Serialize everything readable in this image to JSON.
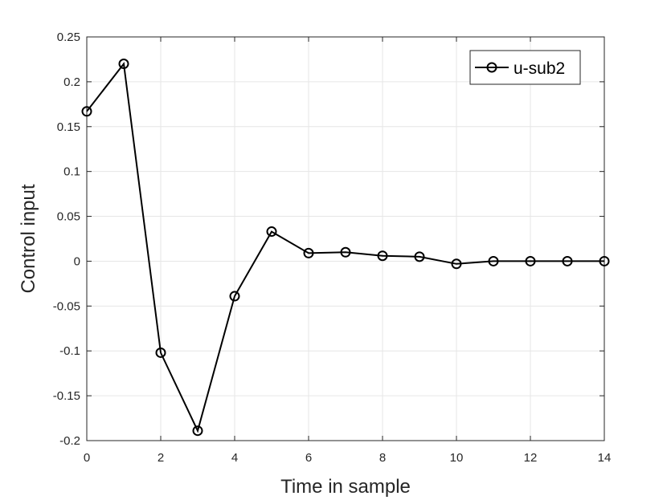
{
  "chart_data": {
    "type": "line",
    "title": "",
    "xlabel": "Time in sample",
    "ylabel": "Control input",
    "xlim": [
      0,
      14
    ],
    "ylim": [
      -0.2,
      0.25
    ],
    "xticks": [
      0,
      2,
      4,
      6,
      8,
      10,
      12,
      14
    ],
    "yticks": [
      -0.2,
      -0.15,
      -0.1,
      -0.05,
      0,
      0.05,
      0.1,
      0.15,
      0.2,
      0.25
    ],
    "xtick_labels": [
      "0",
      "2",
      "4",
      "6",
      "8",
      "10",
      "12",
      "14"
    ],
    "ytick_labels": [
      "-0.2",
      "-0.15",
      "-0.1",
      "-0.05",
      "0",
      "0.05",
      "0.1",
      "0.15",
      "0.2",
      "0.25"
    ],
    "grid": true,
    "legend_position": "top-right",
    "series": [
      {
        "name": "u-sub2",
        "color": "#000000",
        "marker": "circle",
        "x": [
          0,
          1,
          2,
          3,
          4,
          5,
          6,
          7,
          8,
          9,
          10,
          11,
          12,
          13,
          14
        ],
        "y": [
          0.167,
          0.22,
          -0.102,
          -0.189,
          -0.039,
          0.033,
          0.009,
          0.01,
          0.006,
          0.005,
          -0.003,
          0.0,
          0.0,
          0.0,
          0.0
        ]
      }
    ]
  }
}
